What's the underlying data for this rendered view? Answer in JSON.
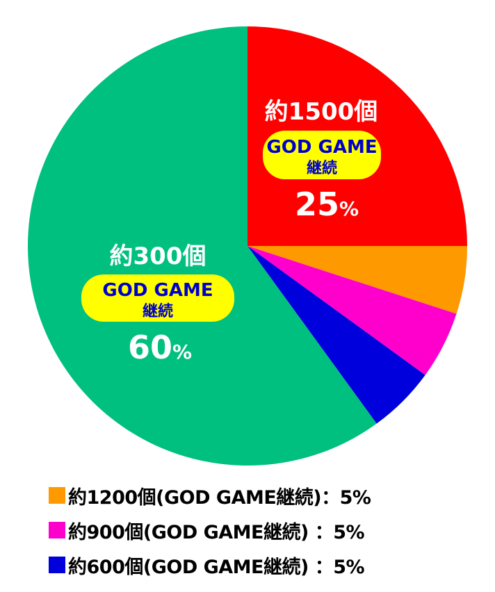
{
  "chart_data": {
    "type": "pie",
    "start_angle": "12 o'clock, clockwise",
    "slices": [
      {
        "title": "約1500個",
        "tag_line1": "GOD GAME",
        "tag_line2": "継続",
        "value": 25,
        "value_label": "25",
        "unit": "%",
        "color": "#ff0000"
      },
      {
        "legend": "約1200個(GOD GAME継続)：5%",
        "value": 5,
        "color": "#ff9900"
      },
      {
        "legend": "約900個(GOD GAME継続) ：5%",
        "value": 5,
        "color": "#ff00cc"
      },
      {
        "legend": "約600個(GOD GAME継続) ：5%",
        "value": 5,
        "color": "#0000dd"
      },
      {
        "title": "約300個",
        "tag_line1": "GOD GAME",
        "tag_line2": "継続",
        "value": 60,
        "value_label": "60",
        "unit": "%",
        "color": "#00c07f"
      }
    ]
  }
}
